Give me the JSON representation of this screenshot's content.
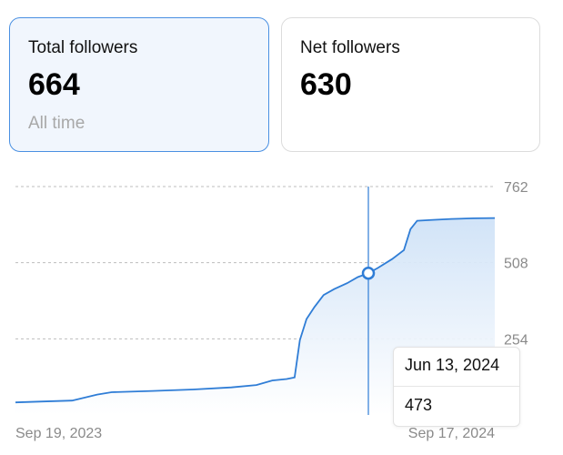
{
  "cards": [
    {
      "title": "Total followers",
      "value": "664",
      "subtitle": "All time",
      "active": true
    },
    {
      "title": "Net followers",
      "value": "630",
      "active": false
    }
  ],
  "chart_data": {
    "type": "area",
    "series": [
      {
        "x": [
          "2023-09-19",
          "2023-10-10",
          "2023-11-01",
          "2023-11-20",
          "2023-12-01",
          "2024-01-01",
          "2024-02-01",
          "2024-03-01",
          "2024-03-20",
          "2024-04-01",
          "2024-04-12",
          "2024-04-18",
          "2024-04-22",
          "2024-04-27",
          "2024-05-03",
          "2024-05-10",
          "2024-05-18",
          "2024-05-28",
          "2024-06-05",
          "2024-06-13",
          "2024-06-20",
          "2024-07-01",
          "2024-07-10",
          "2024-07-15",
          "2024-07-20",
          "2024-08-01",
          "2024-08-15",
          "2024-09-01",
          "2024-09-17"
        ],
        "values": [
          42,
          45,
          48,
          68,
          76,
          80,
          85,
          92,
          100,
          115,
          120,
          125,
          250,
          320,
          360,
          400,
          420,
          440,
          460,
          473,
          490,
          520,
          550,
          620,
          648,
          651,
          654,
          656,
          657
        ]
      }
    ],
    "x_ticks": [
      "Sep 19, 2023",
      "Sep 17, 2024"
    ],
    "y_ticks": [
      254,
      508,
      762
    ],
    "ylim": [
      0,
      762
    ],
    "grid": true,
    "line_color": "#2f7dd6",
    "fill_color_top": "#cfe2f7",
    "fill_color_bottom": "#ffffff"
  },
  "tooltip": {
    "date": "Jun 13, 2024",
    "value": "473",
    "x": "2024-06-13"
  }
}
